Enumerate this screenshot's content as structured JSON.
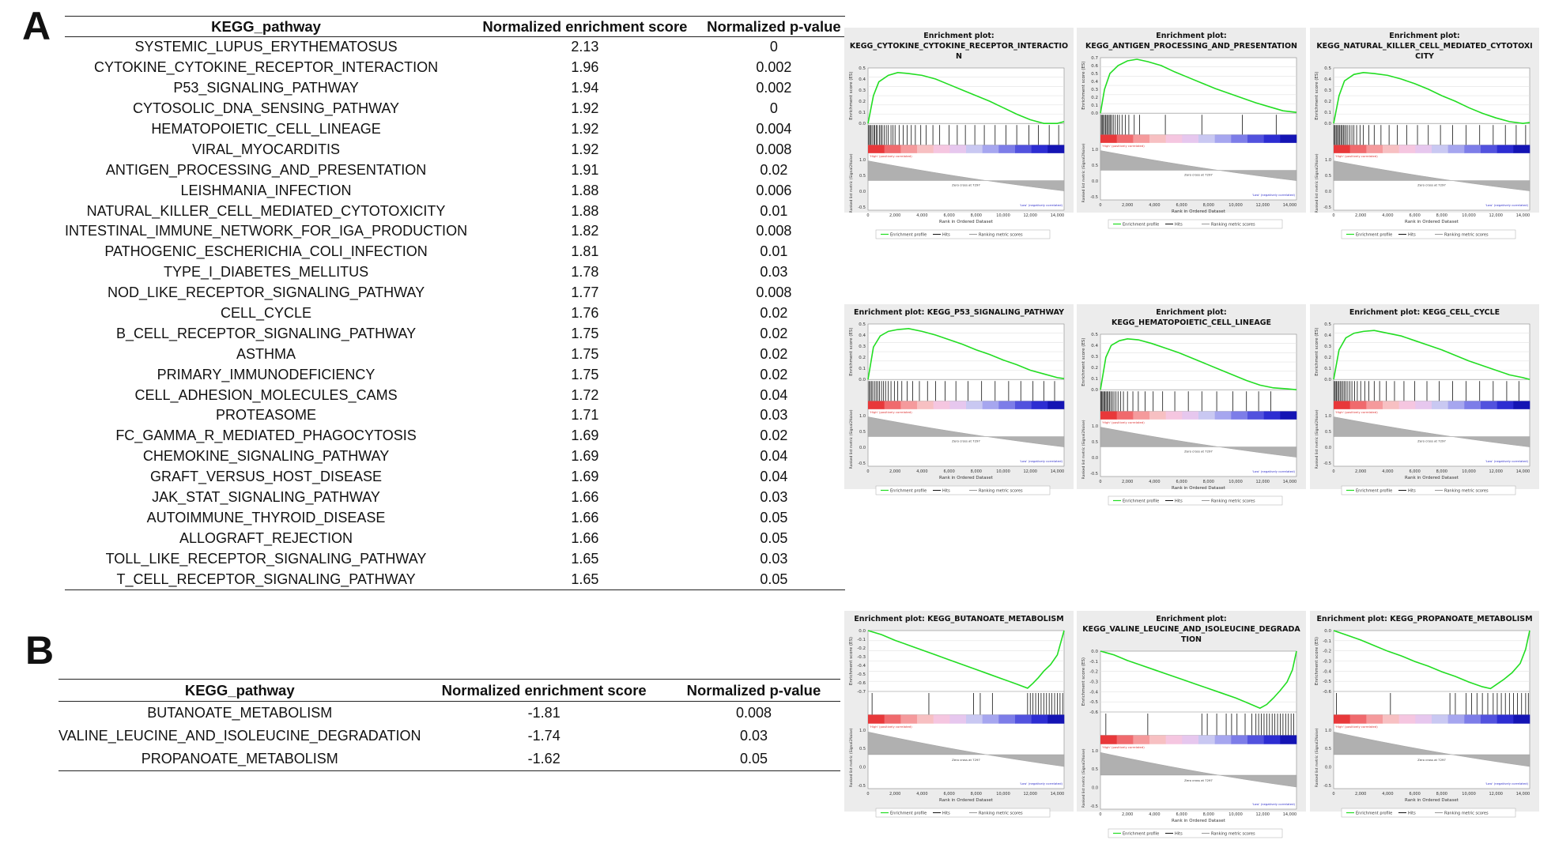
{
  "panel_a": {
    "letter": "A",
    "table": {
      "headers": [
        "KEGG_pathway",
        "Normalized enrichment score",
        "Normalized p-value"
      ],
      "rows": [
        [
          "SYSTEMIC_LUPUS_ERYTHEMATOSUS",
          "2.13",
          "0"
        ],
        [
          "CYTOKINE_CYTOKINE_RECEPTOR_INTERACTION",
          "1.96",
          "0.002"
        ],
        [
          "P53_SIGNALING_PATHWAY",
          "1.94",
          "0.002"
        ],
        [
          "CYTOSOLIC_DNA_SENSING_PATHWAY",
          "1.92",
          "0"
        ],
        [
          "HEMATOPOIETIC_CELL_LINEAGE",
          "1.92",
          "0.004"
        ],
        [
          "VIRAL_MYOCARDITIS",
          "1.92",
          "0.008"
        ],
        [
          "ANTIGEN_PROCESSING_AND_PRESENTATION",
          "1.91",
          "0.02"
        ],
        [
          "LEISHMANIA_INFECTION",
          "1.88",
          "0.006"
        ],
        [
          "NATURAL_KILLER_CELL_MEDIATED_CYTOTOXICITY",
          "1.88",
          "0.01"
        ],
        [
          "INTESTINAL_IMMUNE_NETWORK_FOR_IGA_PRODUCTION",
          "1.82",
          "0.008"
        ],
        [
          "PATHOGENIC_ESCHERICHIA_COLI_INFECTION",
          "1.81",
          "0.01"
        ],
        [
          "TYPE_I_DIABETES_MELLITUS",
          "1.78",
          "0.03"
        ],
        [
          "NOD_LIKE_RECEPTOR_SIGNALING_PATHWAY",
          "1.77",
          "0.008"
        ],
        [
          "CELL_CYCLE",
          "1.76",
          "0.02"
        ],
        [
          "B_CELL_RECEPTOR_SIGNALING_PATHWAY",
          "1.75",
          "0.02"
        ],
        [
          "ASTHMA",
          "1.75",
          "0.02"
        ],
        [
          "PRIMARY_IMMUNODEFICIENCY",
          "1.75",
          "0.02"
        ],
        [
          "CELL_ADHESION_MOLECULES_CAMS",
          "1.72",
          "0.04"
        ],
        [
          "PROTEASOME",
          "1.71",
          "0.03"
        ],
        [
          "FC_GAMMA_R_MEDIATED_PHAGOCYTOSIS",
          "1.69",
          "0.02"
        ],
        [
          "CHEMOKINE_SIGNALING_PATHWAY",
          "1.69",
          "0.04"
        ],
        [
          "GRAFT_VERSUS_HOST_DISEASE",
          "1.69",
          "0.04"
        ],
        [
          "JAK_STAT_SIGNALING_PATHWAY",
          "1.66",
          "0.03"
        ],
        [
          "AUTOIMMUNE_THYROID_DISEASE",
          "1.66",
          "0.05"
        ],
        [
          "ALLOGRAFT_REJECTION",
          "1.66",
          "0.05"
        ],
        [
          "TOLL_LIKE_RECEPTOR_SIGNALING_PATHWAY",
          "1.65",
          "0.03"
        ],
        [
          "T_CELL_RECEPTOR_SIGNALING_PATHWAY",
          "1.65",
          "0.05"
        ]
      ]
    }
  },
  "panel_b": {
    "letter": "B",
    "table": {
      "headers": [
        "KEGG_pathway",
        "Normalized enrichment score",
        "Normalized p-value"
      ],
      "rows": [
        [
          "BUTANOATE_METABOLISM",
          "-1.81",
          "0.008"
        ],
        [
          "VALINE_LEUCINE_AND_ISOLEUCINE_DEGRADATION",
          "-1.74",
          "0.03"
        ],
        [
          "PROPANOATE_METABOLISM",
          "-1.62",
          "0.05"
        ]
      ]
    }
  },
  "plot_labels": {
    "ylabel_es": "Enrichment score (ES)",
    "ylabel_metric": "Ranked list metric (Signal2Noise)",
    "xlabel": "Rank in Ordered Dataset",
    "high_label": "'High' (positively correlated)",
    "low_label": "'Low' (negatively correlated)",
    "zero_cross": "Zero cross at 7297",
    "legend_profile": "Enrichment profile",
    "legend_hits": "Hits",
    "legend_metric": "Ranking metric scores",
    "x_ticks": [
      "0",
      "2,000",
      "4,000",
      "6,000",
      "8,000",
      "10,000",
      "12,000",
      "14,000"
    ],
    "metric_ticks": [
      "1.0",
      "0.5",
      "0.0",
      "-0.5"
    ]
  },
  "chart_data": [
    {
      "type": "line",
      "title_lines": [
        "Enrichment plot:",
        "KEGG_CYTOKINE_CYTOKINE_RECEPTOR_INTERACTIO",
        "N"
      ],
      "direction": "positive",
      "xlim": [
        0,
        14500
      ],
      "ylim": [
        0,
        0.6
      ],
      "y_ticks": [
        "0.5",
        "0.4",
        "0.3",
        "0.2",
        "0.1",
        "0.0"
      ],
      "es_curve": {
        "x": [
          0,
          400,
          800,
          1500,
          2200,
          3000,
          4000,
          5000,
          6000,
          7000,
          8000,
          9000,
          10000,
          11000,
          12000,
          13000,
          14000,
          14500
        ],
        "y": [
          0,
          0.3,
          0.45,
          0.52,
          0.55,
          0.54,
          0.52,
          0.48,
          0.42,
          0.36,
          0.3,
          0.24,
          0.17,
          0.1,
          0.04,
          0.0,
          -0.01,
          0.02
        ]
      },
      "hits": [
        50,
        120,
        200,
        300,
        420,
        500,
        620,
        700,
        850,
        950,
        1050,
        1200,
        1350,
        1500,
        1700,
        1850,
        2000,
        2300,
        2600,
        2900,
        3200,
        3500,
        3900,
        4300,
        4800,
        5300,
        6000,
        6600,
        7200,
        7900,
        8600,
        9400,
        10200,
        11000,
        11900,
        12600,
        13400,
        14100
      ]
    },
    {
      "type": "line",
      "title_lines": [
        "Enrichment plot:",
        "KEGG_ANTIGEN_PROCESSING_AND_PRESENTATION"
      ],
      "direction": "positive",
      "xlim": [
        0,
        14500
      ],
      "ylim": [
        0,
        0.7
      ],
      "y_ticks": [
        "0.7",
        "0.6",
        "0.5",
        "0.4",
        "0.3",
        "0.2",
        "0.1",
        "0.0"
      ],
      "es_curve": {
        "x": [
          0,
          300,
          700,
          1300,
          2000,
          2700,
          3500,
          4500,
          5500,
          6500,
          7500,
          8500,
          9500,
          10500,
          11500,
          12500,
          13500,
          14500
        ],
        "y": [
          0,
          0.3,
          0.5,
          0.6,
          0.66,
          0.68,
          0.65,
          0.6,
          0.52,
          0.45,
          0.38,
          0.31,
          0.25,
          0.19,
          0.13,
          0.08,
          0.03,
          0.01
        ]
      },
      "hits": [
        60,
        130,
        210,
        300,
        390,
        470,
        560,
        650,
        740,
        830,
        950,
        1100,
        1250,
        1400,
        1600,
        1850,
        2100,
        2500,
        2900,
        4800,
        7500,
        10500,
        13000
      ]
    },
    {
      "type": "line",
      "title_lines": [
        "Enrichment plot:",
        "KEGG_NATURAL_KILLER_CELL_MEDIATED_CYTOTOXI",
        "CITY"
      ],
      "direction": "positive",
      "xlim": [
        0,
        14500
      ],
      "ylim": [
        0,
        0.6
      ],
      "y_ticks": [
        "0.5",
        "0.4",
        "0.3",
        "0.2",
        "0.1",
        "0.0"
      ],
      "es_curve": {
        "x": [
          0,
          400,
          800,
          1500,
          2200,
          3000,
          4000,
          5000,
          6000,
          7000,
          8000,
          9000,
          10000,
          11000,
          12000,
          13000,
          14000,
          14500
        ],
        "y": [
          0,
          0.3,
          0.46,
          0.53,
          0.55,
          0.54,
          0.52,
          0.48,
          0.43,
          0.37,
          0.3,
          0.24,
          0.17,
          0.11,
          0.06,
          0.02,
          0.0,
          0.01
        ]
      },
      "hits": [
        40,
        110,
        190,
        280,
        360,
        450,
        540,
        630,
        720,
        820,
        930,
        1050,
        1200,
        1350,
        1500,
        1700,
        1950,
        2200,
        2600,
        3000,
        3500,
        4100,
        4700,
        5400,
        6200,
        7000,
        7900,
        8800,
        9800,
        10800,
        11800,
        12700,
        13500,
        14200
      ]
    },
    {
      "type": "line",
      "title_lines": [
        "Enrichment plot: KEGG_P53_SIGNALING_PATHWAY"
      ],
      "direction": "positive",
      "xlim": [
        0,
        14500
      ],
      "ylim": [
        0,
        0.6
      ],
      "y_ticks": [
        "0.5",
        "0.4",
        "0.3",
        "0.2",
        "0.1",
        "0.0"
      ],
      "es_curve": {
        "x": [
          0,
          400,
          900,
          1500,
          2200,
          3000,
          4000,
          5000,
          6000,
          7000,
          8000,
          9000,
          10000,
          11000,
          12000,
          13000,
          14000,
          14500
        ],
        "y": [
          0,
          0.35,
          0.47,
          0.52,
          0.54,
          0.55,
          0.52,
          0.48,
          0.43,
          0.38,
          0.32,
          0.27,
          0.21,
          0.16,
          0.1,
          0.06,
          0.02,
          0.01
        ]
      },
      "hits": [
        60,
        150,
        250,
        350,
        480,
        600,
        720,
        850,
        1000,
        1150,
        1300,
        1500,
        1700,
        1950,
        2200,
        2500,
        2900,
        3300,
        3800,
        4400,
        5000,
        5700,
        6500,
        7400,
        8400,
        9400,
        10400,
        11300,
        12200,
        13000,
        13800
      ]
    },
    {
      "type": "line",
      "title_lines": [
        "Enrichment plot:",
        "KEGG_HEMATOPOIETIC_CELL_LINEAGE"
      ],
      "direction": "positive",
      "xlim": [
        0,
        14500
      ],
      "ylim": [
        0,
        0.6
      ],
      "y_ticks": [
        "0.5",
        "0.4",
        "0.3",
        "0.2",
        "0.1",
        "0.0"
      ],
      "es_curve": {
        "x": [
          0,
          400,
          800,
          1400,
          2000,
          2800,
          3800,
          4800,
          5800,
          6800,
          7800,
          8800,
          9800,
          10800,
          11800,
          12800,
          13800,
          14500
        ],
        "y": [
          0,
          0.35,
          0.48,
          0.53,
          0.55,
          0.54,
          0.5,
          0.45,
          0.4,
          0.34,
          0.28,
          0.22,
          0.16,
          0.1,
          0.05,
          0.02,
          0.01,
          0.0
        ]
      },
      "hits": [
        40,
        100,
        170,
        250,
        330,
        410,
        490,
        580,
        670,
        770,
        880,
        1000,
        1150,
        1300,
        1500,
        1700,
        2000,
        2400,
        2800,
        3300,
        3900,
        4600,
        5500,
        6500,
        7500,
        8600,
        9800,
        10800,
        11700,
        12600
      ]
    },
    {
      "type": "line",
      "title_lines": [
        "Enrichment plot: KEGG_CELL_CYCLE"
      ],
      "direction": "positive",
      "xlim": [
        0,
        14500
      ],
      "ylim": [
        0,
        0.6
      ],
      "y_ticks": [
        "0.5",
        "0.4",
        "0.3",
        "0.2",
        "0.1",
        "0.0"
      ],
      "es_curve": {
        "x": [
          0,
          400,
          900,
          1500,
          2200,
          3000,
          4000,
          5000,
          6000,
          7000,
          8000,
          9000,
          10000,
          11000,
          12000,
          13000,
          14000,
          14500
        ],
        "y": [
          0,
          0.32,
          0.45,
          0.5,
          0.52,
          0.53,
          0.5,
          0.47,
          0.42,
          0.37,
          0.32,
          0.26,
          0.2,
          0.15,
          0.1,
          0.05,
          0.02,
          0.0
        ]
      },
      "hits": [
        50,
        120,
        200,
        290,
        380,
        480,
        580,
        690,
        800,
        920,
        1050,
        1200,
        1350,
        1550,
        1750,
        2000,
        2300,
        2600,
        3000,
        3400,
        3900,
        4500,
        5200,
        6000,
        6900,
        7800,
        8800,
        9800,
        10800,
        11800,
        12800,
        13700
      ]
    },
    {
      "type": "line",
      "title_lines": [
        "Enrichment plot: KEGG_BUTANOATE_METABOLISM"
      ],
      "direction": "negative",
      "xlim": [
        0,
        14500
      ],
      "ylim": [
        -0.75,
        0
      ],
      "y_ticks": [
        "0.0",
        "-0.1",
        "-0.2",
        "-0.3",
        "-0.4",
        "-0.5",
        "-0.6",
        "-0.7"
      ],
      "es_curve": {
        "x": [
          0,
          1000,
          2000,
          3000,
          4000,
          5000,
          6000,
          7000,
          8000,
          9000,
          10000,
          11000,
          11800,
          12200,
          12600,
          13000,
          13500,
          14000,
          14500
        ],
        "y": [
          0,
          -0.05,
          -0.12,
          -0.18,
          -0.24,
          -0.3,
          -0.36,
          -0.42,
          -0.48,
          -0.54,
          -0.6,
          -0.66,
          -0.71,
          -0.65,
          -0.58,
          -0.5,
          -0.42,
          -0.3,
          0.0
        ]
      },
      "hits": [
        300,
        4500,
        7800,
        8300,
        9200,
        11800,
        12000,
        12200,
        12400,
        12600,
        12800,
        13000,
        13200,
        13400,
        13600,
        13800,
        14000,
        14200,
        14400
      ]
    },
    {
      "type": "line",
      "title_lines": [
        "Enrichment plot:",
        "KEGG_VALINE_LEUCINE_AND_ISOLEUCINE_DEGRADA",
        "TION"
      ],
      "direction": "negative",
      "xlim": [
        0,
        14500
      ],
      "ylim": [
        -0.65,
        0
      ],
      "y_ticks": [
        "0.0",
        "-0.1",
        "-0.2",
        "-0.3",
        "-0.4",
        "-0.5",
        "-0.6"
      ],
      "es_curve": {
        "x": [
          0,
          1000,
          2000,
          3000,
          4000,
          5000,
          6000,
          7000,
          8000,
          9000,
          10000,
          11000,
          11800,
          12300,
          12800,
          13300,
          13800,
          14200,
          14500
        ],
        "y": [
          0,
          -0.04,
          -0.1,
          -0.15,
          -0.2,
          -0.25,
          -0.3,
          -0.35,
          -0.4,
          -0.45,
          -0.5,
          -0.56,
          -0.61,
          -0.57,
          -0.5,
          -0.42,
          -0.33,
          -0.2,
          0.0
        ]
      },
      "hits": [
        400,
        3500,
        7500,
        7900,
        8600,
        9300,
        9700,
        10100,
        10700,
        11200,
        11500,
        11700,
        11900,
        12100,
        12300,
        12500,
        12700,
        12900,
        13100,
        13300,
        13500,
        13700,
        13900,
        14100,
        14300
      ]
    },
    {
      "type": "line",
      "title_lines": [
        "Enrichment plot: KEGG_PROPANOATE_METABOLISM"
      ],
      "direction": "negative",
      "xlim": [
        0,
        14500
      ],
      "ylim": [
        -0.65,
        0
      ],
      "y_ticks": [
        "0.0",
        "-0.1",
        "-0.2",
        "-0.3",
        "-0.4",
        "-0.5",
        "-0.6"
      ],
      "es_curve": {
        "x": [
          0,
          1000,
          2000,
          3000,
          4000,
          5000,
          6000,
          7000,
          8000,
          9000,
          10000,
          11000,
          11600,
          12000,
          12600,
          13200,
          13800,
          14200,
          14500
        ],
        "y": [
          0,
          -0.05,
          -0.1,
          -0.16,
          -0.22,
          -0.27,
          -0.33,
          -0.38,
          -0.44,
          -0.49,
          -0.55,
          -0.6,
          -0.62,
          -0.58,
          -0.52,
          -0.45,
          -0.35,
          -0.2,
          0.0
        ]
      },
      "hits": [
        200,
        4200,
        8600,
        9000,
        9800,
        10200,
        10600,
        11000,
        11400,
        11800,
        12100,
        12400,
        12700,
        13000,
        13300,
        13600,
        13900,
        14200,
        14400
      ]
    }
  ]
}
